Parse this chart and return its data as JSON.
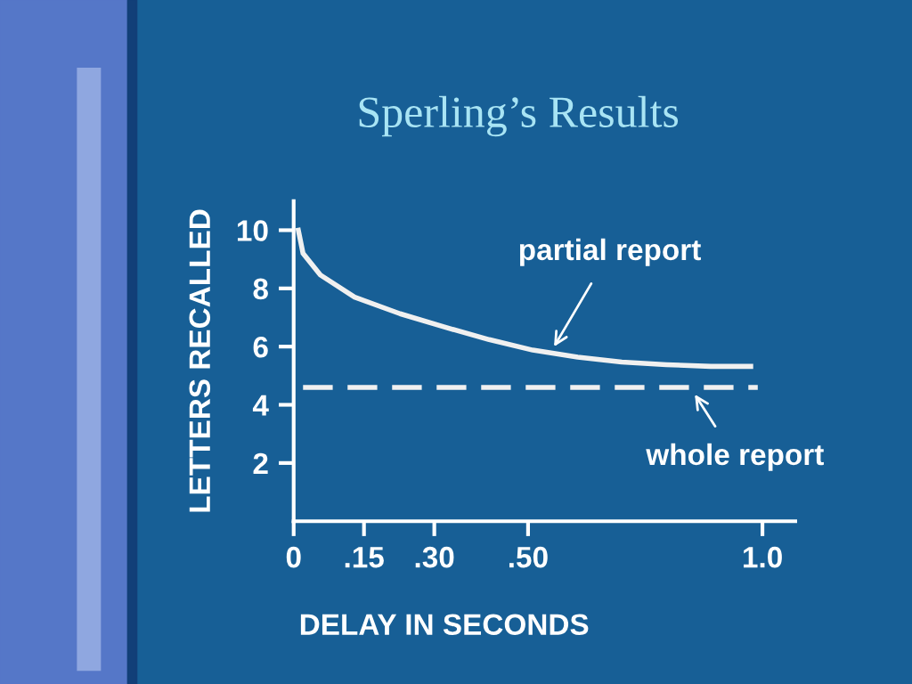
{
  "chart_data": {
    "type": "line",
    "title": "Sperling’s Results",
    "xlabel": "DELAY IN SECONDS",
    "ylabel": "LETTERS RECALLED",
    "xlim": [
      0,
      1.07
    ],
    "ylim": [
      0,
      11
    ],
    "xticks": [
      0,
      {
        "value": 0.15,
        "label": ".15"
      },
      {
        "value": 0.3,
        "label": ".30"
      },
      {
        "value": 0.5,
        "label": ".50"
      },
      {
        "value": 1.0,
        "label": "1.0"
      }
    ],
    "yticks": [
      2,
      4,
      6,
      8,
      10
    ],
    "annotations": [
      {
        "text": "partial report",
        "x": 0.55,
        "y": 5.85
      },
      {
        "text": "whole report",
        "x": 0.85,
        "y": 4.5
      }
    ],
    "series": [
      {
        "color": "#f0f0f0",
        "line_style": "solid",
        "x": [
          0.01,
          0.02,
          0.057,
          0.13,
          0.227,
          0.32,
          0.417,
          0.51,
          0.606,
          0.7,
          0.795,
          0.89,
          0.975
        ],
        "values": [
          10,
          9.2,
          8.46,
          7.7,
          7.13,
          6.68,
          6.24,
          5.88,
          5.64,
          5.47,
          5.38,
          5.32,
          5.32
        ]
      },
      {
        "color": "#f0f0f0",
        "line_style": "dashed",
        "x": [
          0.02,
          0.99
        ],
        "values": [
          4.6,
          4.6
        ]
      }
    ]
  }
}
